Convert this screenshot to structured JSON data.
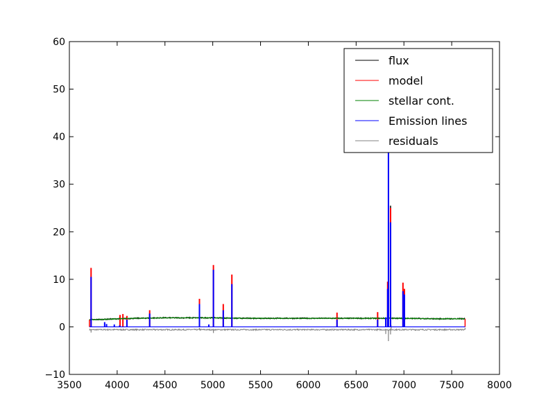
{
  "chart_data": {
    "type": "line",
    "title": "",
    "xlabel": "",
    "ylabel": "",
    "xlim": [
      3500,
      8000
    ],
    "ylim": [
      -10,
      60
    ],
    "xticks": [
      3500,
      4000,
      4500,
      5000,
      5500,
      6000,
      6500,
      7000,
      7500,
      8000
    ],
    "yticks": [
      -10,
      0,
      10,
      20,
      30,
      40,
      50,
      60
    ],
    "xtick_labels": [
      "3500",
      "4000",
      "4500",
      "5000",
      "5500",
      "6000",
      "6500",
      "7000",
      "7500",
      "8000"
    ],
    "ytick_labels": [
      "−10",
      "0",
      "10",
      "20",
      "30",
      "40",
      "50",
      "60"
    ],
    "grid": false,
    "legend_position": "top-right",
    "continuum": {
      "x": [
        3710,
        3900,
        4000,
        4200,
        4500,
        4800,
        5000,
        5300,
        5600,
        6000,
        6300,
        6700,
        6800,
        7000,
        7300,
        7640
      ],
      "y": [
        1.5,
        1.6,
        1.7,
        1.8,
        1.9,
        1.9,
        1.9,
        1.8,
        1.8,
        1.8,
        1.8,
        1.8,
        1.8,
        1.8,
        1.7,
        1.7
      ]
    },
    "emission_lines": [
      {
        "x": 3727,
        "height": 10.5
      },
      {
        "x": 3869,
        "height": 1.0
      },
      {
        "x": 3889,
        "height": 0.6
      },
      {
        "x": 3970,
        "height": 0.5
      },
      {
        "x": 4026,
        "height": 0.3
      },
      {
        "x": 4102,
        "height": 1.5
      },
      {
        "x": 4340,
        "height": 2.8
      },
      {
        "x": 4861,
        "height": 4.8
      },
      {
        "x": 4959,
        "height": 0.5
      },
      {
        "x": 5007,
        "height": 12.0
      },
      {
        "x": 5110,
        "height": 3.5
      },
      {
        "x": 5200,
        "height": 9.0
      },
      {
        "x": 6300,
        "height": 1.5
      },
      {
        "x": 6725,
        "height": 1.5
      },
      {
        "x": 6810,
        "height": 2.0
      },
      {
        "x": 6830,
        "height": 8.0
      },
      {
        "x": 6838,
        "height": 37.0
      },
      {
        "x": 6860,
        "height": 22.0
      },
      {
        "x": 6990,
        "height": 7.5
      },
      {
        "x": 7005,
        "height": 6.8
      }
    ],
    "model_excess": [
      {
        "x": 3727,
        "y": 12.4
      },
      {
        "x": 4030,
        "y": 2.5
      },
      {
        "x": 4060,
        "y": 2.7
      },
      {
        "x": 4102,
        "y": 2.3
      },
      {
        "x": 4340,
        "y": 3.5
      },
      {
        "x": 4861,
        "y": 5.9
      },
      {
        "x": 5007,
        "y": 13.0
      },
      {
        "x": 5110,
        "y": 4.8
      },
      {
        "x": 5200,
        "y": 11.0
      },
      {
        "x": 6300,
        "y": 3.0
      },
      {
        "x": 6725,
        "y": 3.1
      },
      {
        "x": 6830,
        "y": 9.5
      },
      {
        "x": 6860,
        "y": 25.0
      },
      {
        "x": 6990,
        "y": 9.3
      },
      {
        "x": 7005,
        "y": 8.0
      }
    ],
    "flux_peaks": [
      {
        "x": 6838,
        "y": 46.0
      },
      {
        "x": 6860,
        "y": 25.5
      }
    ],
    "residuals": {
      "baseline": -0.6,
      "spikes": [
        {
          "x": 3727,
          "y": -1.2
        },
        {
          "x": 4861,
          "y": -0.2
        },
        {
          "x": 5007,
          "y": -1.3
        },
        {
          "x": 6810,
          "y": -1.5
        },
        {
          "x": 6838,
          "y": -3.0
        },
        {
          "x": 6860,
          "y": -1.6
        },
        {
          "x": 6866,
          "y": 0.4
        },
        {
          "x": 7640,
          "y": -0.2
        }
      ]
    },
    "series": [
      {
        "name": "flux",
        "color": "#000000"
      },
      {
        "name": "model",
        "color": "#ff0000"
      },
      {
        "name": "stellar cont.",
        "color": "#008000"
      },
      {
        "name": "Emission lines",
        "color": "#0000ff"
      },
      {
        "name": "residuals",
        "color": "#808080"
      }
    ]
  }
}
